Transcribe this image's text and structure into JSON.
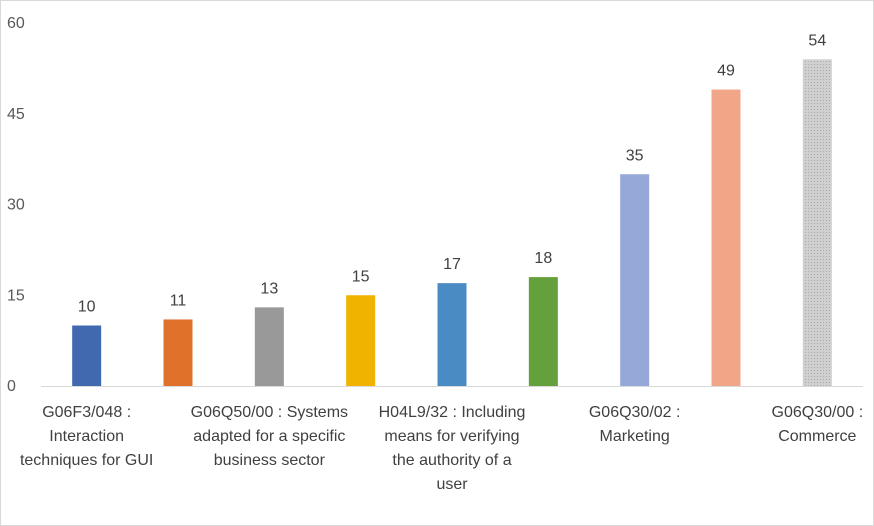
{
  "chart_data": {
    "type": "bar",
    "title": "",
    "xlabel": "",
    "ylabel": "",
    "ylim": [
      0,
      60
    ],
    "yticks": [
      0,
      15,
      30,
      45,
      60
    ],
    "grid": false,
    "categories": [
      "G06F3/048 : Interaction techniques for GUI",
      "",
      "G06Q50/00 : Systems adapted for a specific business sector",
      "",
      "H04L9/32 : Including means for verifying the authority of a user",
      "",
      "G06Q30/02 : Marketing",
      "",
      "G06Q30/00 : Commerce"
    ],
    "category_label_lines": [
      [
        "G06F3/048 :",
        "Interaction",
        "techniques for GUI"
      ],
      [],
      [
        "G06Q50/00 : Systems",
        "adapted for a specific",
        "business sector"
      ],
      [],
      [
        "H04L9/32 : Including",
        "means for verifying",
        "the authority of a",
        "user"
      ],
      [],
      [
        "G06Q30/02 :",
        "Marketing"
      ],
      [],
      [
        "G06Q30/00 :",
        "Commerce"
      ]
    ],
    "values": [
      10,
      11,
      13,
      15,
      17,
      18,
      35,
      49,
      54
    ],
    "colors": [
      "#4169b0",
      "#e0712a",
      "#999999",
      "#f0b400",
      "#4a8bc4",
      "#64a03c",
      "#96a8d8",
      "#f2a688",
      "#c3c3c3"
    ]
  }
}
